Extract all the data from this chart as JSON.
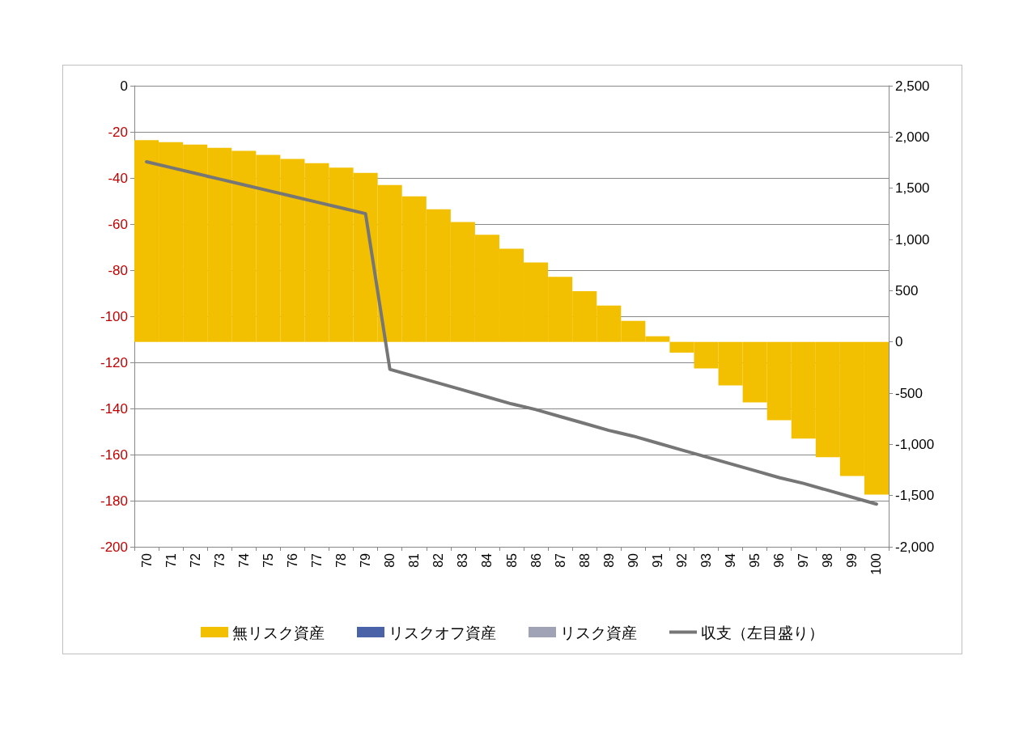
{
  "chart_data": {
    "type": "bar",
    "categories": [
      "70",
      "71",
      "72",
      "73",
      "74",
      "75",
      "76",
      "77",
      "78",
      "79",
      "80",
      "81",
      "82",
      "83",
      "84",
      "85",
      "86",
      "87",
      "88",
      "89",
      "90",
      "91",
      "92",
      "93",
      "94",
      "95",
      "96",
      "97",
      "98",
      "99",
      "100"
    ],
    "series": [
      {
        "name": "無リスク資産",
        "color": "#f2c000",
        "axis": "y2",
        "values": [
          1970,
          1950,
          1925,
          1895,
          1865,
          1825,
          1785,
          1745,
          1700,
          1650,
          1530,
          1420,
          1295,
          1170,
          1045,
          910,
          775,
          635,
          495,
          355,
          205,
          55,
          -105,
          -260,
          -425,
          -590,
          -765,
          -945,
          -1125,
          -1310,
          -1490
        ]
      },
      {
        "name": "リスクオフ資産",
        "color": "#4a62a8",
        "axis": "y2",
        "values": [
          null,
          null,
          null,
          null,
          null,
          null,
          null,
          null,
          null,
          null,
          null,
          null,
          null,
          null,
          null,
          null,
          null,
          null,
          null,
          null,
          null,
          null,
          null,
          null,
          null,
          null,
          null,
          null,
          null,
          null,
          null
        ]
      },
      {
        "name": "リスク資産",
        "color": "#a0a3b5",
        "axis": "y2",
        "values": [
          null,
          null,
          null,
          null,
          null,
          null,
          null,
          null,
          null,
          null,
          null,
          null,
          null,
          null,
          null,
          null,
          null,
          null,
          null,
          null,
          null,
          null,
          null,
          null,
          null,
          null,
          null,
          null,
          null,
          null,
          null
        ]
      },
      {
        "name": "収支（左目盛り）",
        "color": "#767676",
        "type": "line",
        "axis": "y",
        "values": [
          -33,
          -35.5,
          -38,
          -40.5,
          -43,
          -45.5,
          -48,
          -50.5,
          -53,
          -55.5,
          -123,
          -126,
          -129,
          -132,
          -135,
          -138,
          -140.5,
          -143.5,
          -146.5,
          -149.5,
          -152,
          -155,
          -158,
          -161,
          -164,
          -167,
          -170,
          -172.5,
          -175.5,
          -178.5,
          -181.5
        ]
      }
    ],
    "stacked": true,
    "ylim": [
      -200,
      0
    ],
    "yticks": [
      -200,
      -180,
      -160,
      -140,
      -120,
      -100,
      -80,
      -60,
      -40,
      -20,
      0
    ],
    "y2lim": [
      -2000,
      2500
    ],
    "y2ticks": [
      {
        "value": -2000,
        "label": "-2,000"
      },
      {
        "value": -1500,
        "label": "-1,500"
      },
      {
        "value": -1000,
        "label": "-1,000"
      },
      -500,
      0,
      500,
      {
        "value": 1000,
        "label": "1,000"
      },
      {
        "value": 1500,
        "label": "1,500"
      },
      {
        "value": 2000,
        "label": "2,000"
      },
      {
        "value": 2500,
        "label": "2,500"
      }
    ],
    "grid": "y",
    "legend": "bottom",
    "marker": "none",
    "line_style": "solid"
  }
}
